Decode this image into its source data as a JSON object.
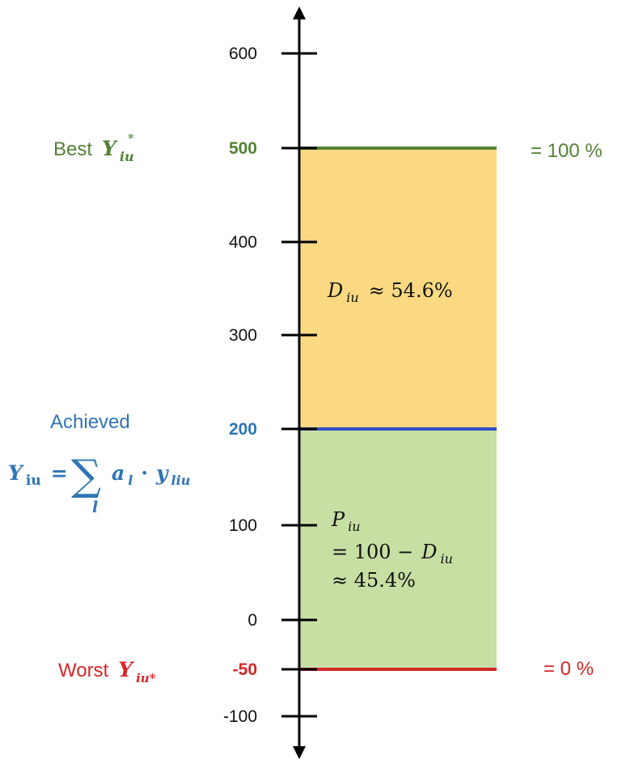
{
  "colors": {
    "axis": "#000000",
    "best": "#538135",
    "achieved": "#2E75B6",
    "achieved_line": "#2F4FC8",
    "worst": "#D62727",
    "gap_fill": "#FBD982",
    "achieved_fill": "#C8DFA4"
  },
  "axis": {
    "ticks": [
      {
        "value": 600,
        "label": "600"
      },
      {
        "value": 400,
        "label": "400"
      },
      {
        "value": 300,
        "label": "300"
      },
      {
        "value": 100,
        "label": "100"
      },
      {
        "value": 0,
        "label": "0"
      },
      {
        "value": -100,
        "label": "-100"
      }
    ]
  },
  "levels": {
    "best": {
      "value": 500,
      "tick_label": "500",
      "word": "Best",
      "symbol": "Y",
      "subscript": "iu",
      "superscript": "*",
      "percent_label": "= 100 %"
    },
    "achieved": {
      "value": 200,
      "tick_label": "200",
      "word": "Achieved",
      "formula_lhs": "Y",
      "formula_lhs_sub": "iu",
      "formula_eq": "=",
      "sum_symbol": "∑",
      "sum_index": "l",
      "term_a": "a",
      "term_a_sub": "l",
      "term_dot": "·",
      "term_y": "y",
      "term_y_sub": "liu"
    },
    "worst": {
      "value": -50,
      "tick_label": "-50",
      "word": "Worst",
      "symbol": "Y",
      "subscript": "iu*",
      "percent_label": "= 0 %"
    }
  },
  "regions": {
    "gap": {
      "symbol": "D",
      "subscript": "iu",
      "value_text": "≈ 54.6%"
    },
    "achieved_part": {
      "symbol": "P",
      "subscript": "iu",
      "line2_prefix": "= 100 −",
      "line2_symbol": "D",
      "line2_sub": "iu",
      "line3": "≈ 45.4%"
    }
  }
}
